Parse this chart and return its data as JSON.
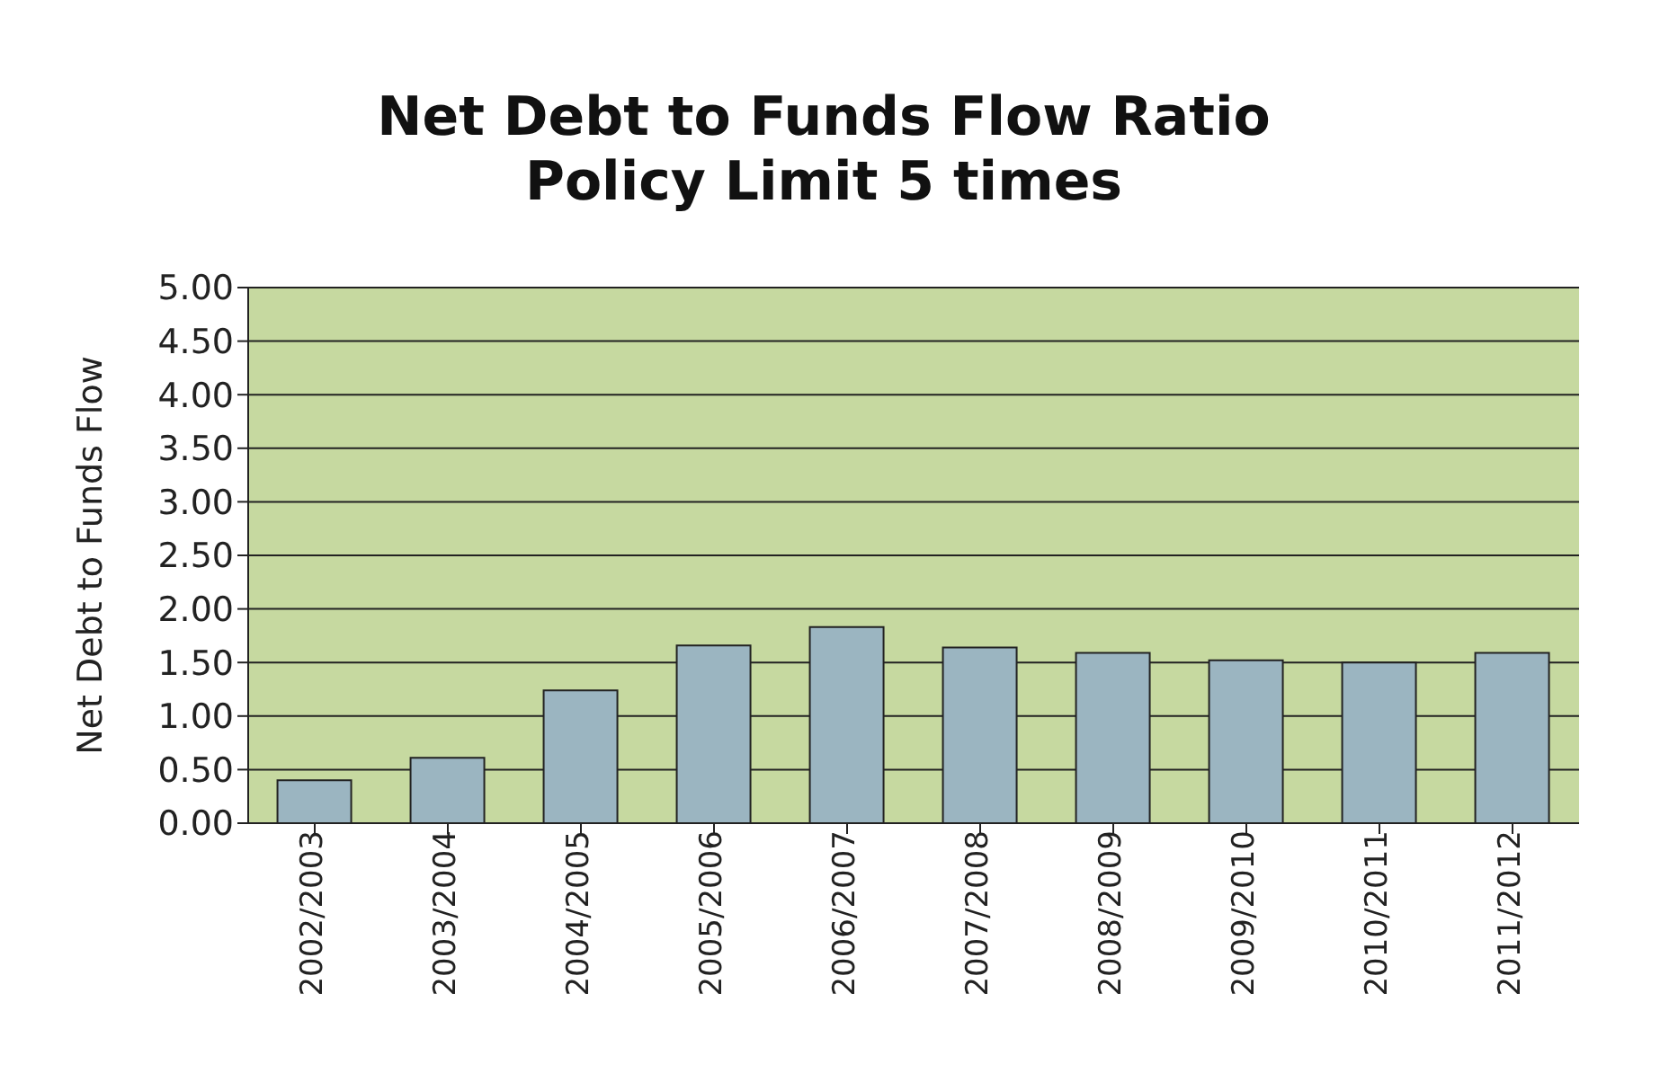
{
  "chart_data": {
    "type": "bar",
    "title": "Net Debt to Funds Flow Ratio\nPolicy Limit 5 times",
    "ylabel": "Net Debt to Funds Flow",
    "categories": [
      "2002/2003",
      "2003/2004",
      "2004/2005",
      "2005/2006",
      "2006/2007",
      "2007/2008",
      "2008/2009",
      "2009/2010",
      "2010/2011",
      "2011/2012"
    ],
    "values": [
      0.4,
      0.61,
      1.24,
      1.66,
      1.83,
      1.64,
      1.59,
      1.52,
      1.5,
      1.59
    ],
    "color": "#9bb5c1",
    "ylim": [
      0,
      5
    ],
    "yticks": [
      {
        "value": 0,
        "label": "0.00"
      },
      {
        "value": 0.5,
        "label": "0.50"
      },
      {
        "value": 1,
        "label": "1.00"
      },
      {
        "value": 1.5,
        "label": "1.50"
      },
      {
        "value": 2,
        "label": "2.00"
      },
      {
        "value": 2.5,
        "label": "2.50"
      },
      {
        "value": 3,
        "label": "3.00"
      },
      {
        "value": 3.5,
        "label": "3.50"
      },
      {
        "value": 4,
        "label": "4.00"
      },
      {
        "value": 4.5,
        "label": "4.50"
      },
      {
        "value": 5,
        "label": "5.00"
      }
    ],
    "grid": "y",
    "legend": false
  }
}
